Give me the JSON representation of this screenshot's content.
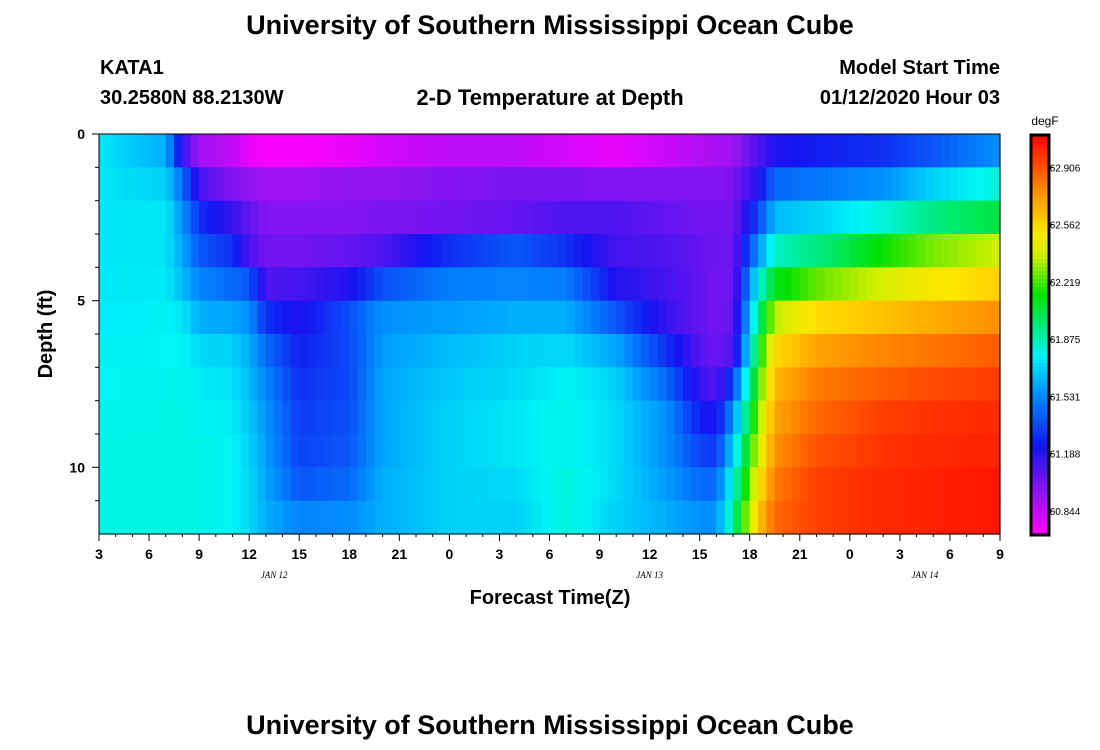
{
  "header": {
    "title": "University of Southern Mississippi Ocean Cube",
    "station": "KATA1",
    "coords": "30.2580N 88.2130W",
    "subtitle": "2-D Temperature at Depth",
    "model_label": "Model Start Time",
    "model_time": "01/12/2020 Hour 03",
    "footer_title": "University of Southern Mississippi Ocean Cube"
  },
  "chart_data": {
    "type": "heatmap",
    "title": "2-D Temperature at Depth",
    "xlabel": "Forecast Time(Z)",
    "ylabel": "Depth (ft)",
    "units": "degF",
    "x_hours": [
      0,
      54
    ],
    "y_depth": [
      0,
      12
    ],
    "xticks": [
      {
        "h": 0,
        "label": "3"
      },
      {
        "h": 3,
        "label": "6"
      },
      {
        "h": 6,
        "label": "9"
      },
      {
        "h": 9,
        "label": "12"
      },
      {
        "h": 12,
        "label": "15"
      },
      {
        "h": 15,
        "label": "18"
      },
      {
        "h": 18,
        "label": "21"
      },
      {
        "h": 21,
        "label": "0"
      },
      {
        "h": 24,
        "label": "3"
      },
      {
        "h": 27,
        "label": "6"
      },
      {
        "h": 30,
        "label": "9"
      },
      {
        "h": 33,
        "label": "12"
      },
      {
        "h": 36,
        "label": "15"
      },
      {
        "h": 39,
        "label": "18"
      },
      {
        "h": 42,
        "label": "21"
      },
      {
        "h": 45,
        "label": "0"
      },
      {
        "h": 48,
        "label": "3"
      },
      {
        "h": 51,
        "label": "6"
      },
      {
        "h": 54,
        "label": "9"
      }
    ],
    "yticks": [
      {
        "d": 0,
        "label": "0"
      },
      {
        "d": 5,
        "label": "5"
      },
      {
        "d": 10,
        "label": "10"
      }
    ],
    "date_labels": [
      {
        "h": 10.5,
        "label": "JAN 12"
      },
      {
        "h": 33,
        "label": "JAN 13"
      },
      {
        "h": 49.5,
        "label": "JAN 14"
      }
    ],
    "colorbar": {
      "min": 60.7,
      "max": 63.1,
      "labels": [
        "62.906",
        "62.562",
        "62.219",
        "61.875",
        "61.531",
        "61.188",
        "60.844"
      ]
    },
    "depth_levels": [
      0.5,
      1.5,
      2.5,
      3.5,
      4.5,
      5.5,
      6.5,
      7.5,
      8.5,
      9.5,
      10.5,
      11.5
    ],
    "temperature_profiles": [
      {
        "hour": 0,
        "temps": [
          61.75,
          61.75,
          61.75,
          61.75,
          61.75,
          61.76,
          61.77,
          61.78,
          61.79,
          61.8,
          61.8,
          61.8
        ]
      },
      {
        "hour": 4,
        "temps": [
          61.62,
          61.7,
          61.75,
          61.75,
          61.76,
          61.77,
          61.78,
          61.79,
          61.8,
          61.8,
          61.8,
          61.8
        ]
      },
      {
        "hour": 5,
        "temps": [
          61.15,
          61.45,
          61.55,
          61.6,
          61.65,
          61.75,
          61.78,
          61.79,
          61.8,
          61.8,
          61.8,
          61.8
        ]
      },
      {
        "hour": 6,
        "temps": [
          60.92,
          61.12,
          61.3,
          61.4,
          61.52,
          61.62,
          61.72,
          61.76,
          61.78,
          61.8,
          61.8,
          61.8
        ]
      },
      {
        "hour": 8,
        "temps": [
          60.85,
          60.98,
          61.15,
          61.3,
          61.45,
          61.6,
          61.7,
          61.74,
          61.76,
          61.78,
          61.78,
          61.78
        ]
      },
      {
        "hour": 9,
        "temps": [
          60.75,
          60.95,
          61.05,
          61.1,
          61.4,
          61.55,
          61.62,
          61.65,
          61.68,
          61.7,
          61.72,
          61.72
        ]
      },
      {
        "hour": 10,
        "temps": [
          60.72,
          60.92,
          60.98,
          61.02,
          61.1,
          61.3,
          61.45,
          61.52,
          61.56,
          61.58,
          61.6,
          61.62
        ]
      },
      {
        "hour": 12,
        "temps": [
          60.72,
          60.92,
          60.98,
          61.02,
          61.12,
          61.2,
          61.26,
          61.3,
          61.33,
          61.35,
          61.4,
          61.52
        ]
      },
      {
        "hour": 15,
        "temps": [
          60.75,
          60.95,
          60.98,
          61.05,
          61.2,
          61.38,
          61.36,
          61.36,
          61.38,
          61.4,
          61.45,
          61.54
        ]
      },
      {
        "hour": 17,
        "temps": [
          60.8,
          60.95,
          61.0,
          61.1,
          61.38,
          61.55,
          61.58,
          61.6,
          61.6,
          61.6,
          61.62,
          61.62
        ]
      },
      {
        "hour": 21,
        "temps": [
          60.85,
          60.98,
          61.02,
          61.3,
          61.5,
          61.58,
          61.65,
          61.68,
          61.7,
          61.7,
          61.7,
          61.7
        ]
      },
      {
        "hour": 25,
        "temps": [
          60.85,
          61.0,
          61.05,
          61.4,
          61.52,
          61.62,
          61.7,
          61.72,
          61.75,
          61.75,
          61.72,
          61.7
        ]
      },
      {
        "hour": 28,
        "temps": [
          60.8,
          61.0,
          61.1,
          61.3,
          61.5,
          61.62,
          61.72,
          61.78,
          61.8,
          61.8,
          61.82,
          61.82
        ]
      },
      {
        "hour": 31,
        "temps": [
          60.75,
          60.98,
          61.1,
          61.12,
          61.2,
          61.4,
          61.6,
          61.7,
          61.72,
          61.72,
          61.72,
          61.7
        ]
      },
      {
        "hour": 34,
        "temps": [
          60.82,
          60.98,
          61.05,
          61.1,
          61.12,
          61.15,
          61.3,
          61.45,
          61.55,
          61.55,
          61.58,
          61.62
        ]
      },
      {
        "hour": 36,
        "temps": [
          60.88,
          60.98,
          61.02,
          61.05,
          61.05,
          61.05,
          61.08,
          61.15,
          61.25,
          61.35,
          61.45,
          61.55
        ]
      },
      {
        "hour": 37,
        "temps": [
          60.9,
          60.98,
          61.02,
          61.03,
          61.02,
          61.02,
          61.03,
          61.08,
          61.2,
          61.32,
          61.45,
          61.55
        ]
      },
      {
        "hour": 38,
        "temps": [
          60.92,
          61.0,
          61.02,
          61.03,
          61.03,
          61.05,
          61.1,
          61.35,
          61.55,
          61.7,
          61.82,
          61.92
        ]
      },
      {
        "hour": 39.5,
        "temps": [
          61.1,
          61.2,
          61.35,
          61.55,
          61.8,
          61.95,
          62.1,
          62.2,
          62.3,
          62.4,
          62.5,
          62.6
        ]
      },
      {
        "hour": 40.5,
        "temps": [
          61.2,
          61.45,
          61.65,
          61.85,
          62.1,
          62.35,
          62.55,
          62.65,
          62.7,
          62.75,
          62.8,
          62.85
        ]
      },
      {
        "hour": 43,
        "temps": [
          61.25,
          61.48,
          61.7,
          61.95,
          62.25,
          62.55,
          62.7,
          62.8,
          62.85,
          62.9,
          62.95,
          62.95
        ]
      },
      {
        "hour": 47,
        "temps": [
          61.3,
          61.55,
          61.82,
          62.15,
          62.4,
          62.62,
          62.78,
          62.88,
          62.95,
          62.98,
          63.0,
          63.0
        ]
      },
      {
        "hour": 50,
        "temps": [
          61.4,
          61.7,
          61.95,
          62.28,
          62.5,
          62.68,
          62.82,
          62.92,
          62.98,
          63.0,
          63.02,
          63.02
        ]
      },
      {
        "hour": 54,
        "temps": [
          61.55,
          61.82,
          62.05,
          62.38,
          62.58,
          62.75,
          62.88,
          62.96,
          63.0,
          63.02,
          63.05,
          63.05
        ]
      }
    ]
  }
}
